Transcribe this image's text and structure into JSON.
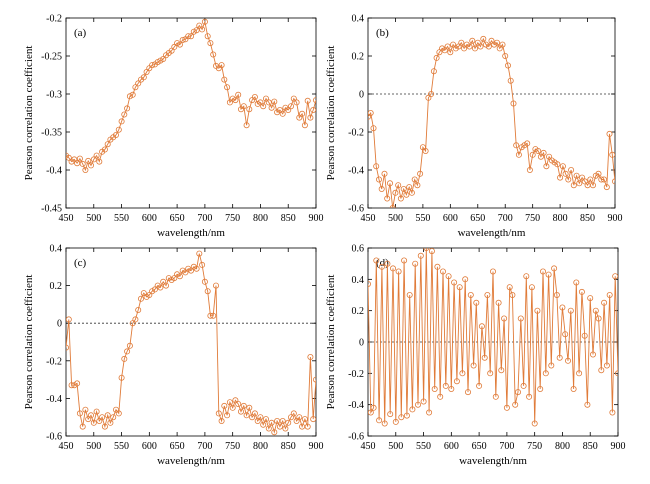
{
  "figure": {
    "line_color": "#e07b39",
    "zero_line_color": "#333333"
  },
  "chart_data": [
    {
      "type": "line",
      "panel_label": "(a)",
      "xlabel": "wavelength/nm",
      "ylabel": "Pearson correlation coefficient",
      "xlim": [
        450,
        900
      ],
      "ylim": [
        -0.45,
        -0.2
      ],
      "xticks": [
        450,
        500,
        550,
        600,
        650,
        700,
        750,
        800,
        850,
        900
      ],
      "yticks": [
        -0.45,
        -0.4,
        -0.35,
        -0.3,
        -0.25,
        -0.2
      ],
      "ytick_labels": [
        "-0.45",
        "-0.4",
        "-0.35",
        "-0.3",
        "-0.25",
        "-0.2"
      ],
      "zero_line": false,
      "x": [
        450,
        455,
        460,
        465,
        470,
        475,
        480,
        485,
        490,
        495,
        500,
        505,
        510,
        515,
        520,
        525,
        530,
        535,
        540,
        545,
        550,
        555,
        560,
        565,
        570,
        575,
        580,
        585,
        590,
        595,
        600,
        605,
        610,
        615,
        620,
        625,
        630,
        635,
        640,
        645,
        650,
        655,
        660,
        665,
        670,
        675,
        680,
        685,
        690,
        695,
        700,
        705,
        710,
        715,
        720,
        725,
        730,
        735,
        740,
        745,
        750,
        755,
        760,
        765,
        770,
        775,
        780,
        785,
        790,
        795,
        800,
        805,
        810,
        815,
        820,
        825,
        830,
        835,
        840,
        845,
        850,
        855,
        860,
        865,
        870,
        875,
        880,
        885,
        890,
        895,
        900
      ],
      "values": [
        -0.381,
        -0.384,
        -0.389,
        -0.386,
        -0.391,
        -0.385,
        -0.392,
        -0.4,
        -0.388,
        -0.394,
        -0.386,
        -0.381,
        -0.389,
        -0.376,
        -0.373,
        -0.366,
        -0.36,
        -0.357,
        -0.354,
        -0.347,
        -0.336,
        -0.327,
        -0.319,
        -0.303,
        -0.301,
        -0.291,
        -0.286,
        -0.281,
        -0.278,
        -0.271,
        -0.266,
        -0.262,
        -0.261,
        -0.258,
        -0.256,
        -0.254,
        -0.249,
        -0.246,
        -0.243,
        -0.238,
        -0.233,
        -0.235,
        -0.229,
        -0.228,
        -0.224,
        -0.224,
        -0.218,
        -0.216,
        -0.21,
        -0.215,
        -0.205,
        -0.224,
        -0.233,
        -0.248,
        -0.263,
        -0.266,
        -0.262,
        -0.281,
        -0.291,
        -0.311,
        -0.306,
        -0.308,
        -0.301,
        -0.32,
        -0.316,
        -0.341,
        -0.32,
        -0.308,
        -0.304,
        -0.313,
        -0.311,
        -0.316,
        -0.306,
        -0.311,
        -0.318,
        -0.31,
        -0.324,
        -0.321,
        -0.326,
        -0.318,
        -0.321,
        -0.316,
        -0.306,
        -0.311,
        -0.331,
        -0.326,
        -0.341,
        -0.309,
        -0.331,
        -0.321,
        -0.308
      ]
    },
    {
      "type": "line",
      "panel_label": "(b)",
      "xlabel": "wavelength/nm",
      "ylabel": "Pearson correlation coefficient",
      "xlim": [
        450,
        900
      ],
      "ylim": [
        -0.6,
        0.4
      ],
      "xticks": [
        450,
        500,
        550,
        600,
        650,
        700,
        750,
        800,
        850,
        900
      ],
      "yticks": [
        -0.6,
        -0.4,
        -0.2,
        0,
        0.2,
        0.4
      ],
      "ytick_labels": [
        "-0.6",
        "-0.4",
        "-0.2",
        "0",
        "0.2",
        "0.4"
      ],
      "zero_line": true,
      "x": [
        450,
        455,
        460,
        465,
        470,
        475,
        480,
        485,
        490,
        495,
        500,
        505,
        510,
        515,
        520,
        525,
        530,
        535,
        540,
        545,
        550,
        555,
        560,
        565,
        570,
        575,
        580,
        585,
        590,
        595,
        600,
        605,
        610,
        615,
        620,
        625,
        630,
        635,
        640,
        645,
        650,
        655,
        660,
        665,
        670,
        675,
        680,
        685,
        690,
        695,
        700,
        705,
        710,
        715,
        720,
        725,
        730,
        735,
        740,
        745,
        750,
        755,
        760,
        765,
        770,
        775,
        780,
        785,
        790,
        795,
        800,
        805,
        810,
        815,
        820,
        825,
        830,
        835,
        840,
        845,
        850,
        855,
        860,
        865,
        870,
        875,
        880,
        885,
        890,
        895,
        900
      ],
      "values": [
        -0.12,
        -0.1,
        -0.18,
        -0.38,
        -0.45,
        -0.5,
        -0.42,
        -0.55,
        -0.47,
        -0.6,
        -0.52,
        -0.48,
        -0.55,
        -0.5,
        -0.53,
        -0.49,
        -0.52,
        -0.45,
        -0.48,
        -0.42,
        -0.28,
        -0.3,
        -0.02,
        0.0,
        0.12,
        0.19,
        0.22,
        0.24,
        0.23,
        0.25,
        0.22,
        0.26,
        0.24,
        0.25,
        0.27,
        0.24,
        0.26,
        0.25,
        0.28,
        0.24,
        0.27,
        0.25,
        0.29,
        0.26,
        0.25,
        0.28,
        0.26,
        0.27,
        0.24,
        0.26,
        0.2,
        0.15,
        0.07,
        -0.05,
        -0.27,
        -0.32,
        -0.28,
        -0.27,
        -0.26,
        -0.4,
        -0.32,
        -0.29,
        -0.3,
        -0.33,
        -0.31,
        -0.38,
        -0.33,
        -0.35,
        -0.36,
        -0.37,
        -0.44,
        -0.38,
        -0.42,
        -0.45,
        -0.4,
        -0.48,
        -0.43,
        -0.47,
        -0.44,
        -0.46,
        -0.48,
        -0.45,
        -0.48,
        -0.43,
        -0.42,
        -0.45,
        -0.45,
        -0.49,
        -0.21,
        -0.32,
        -0.46
      ]
    },
    {
      "type": "line",
      "panel_label": "(c)",
      "xlabel": "wavelength/nm",
      "ylabel": "Pearson correlation coefficient",
      "xlim": [
        450,
        900
      ],
      "ylim": [
        -0.6,
        0.4
      ],
      "xticks": [
        450,
        500,
        550,
        600,
        650,
        700,
        750,
        800,
        850,
        900
      ],
      "yticks": [
        -0.6,
        -0.4,
        -0.2,
        0,
        0.2,
        0.4
      ],
      "ytick_labels": [
        "-0.6",
        "-0.4",
        "-0.2",
        "0",
        "0.2",
        "0.4"
      ],
      "zero_line": true,
      "x": [
        450,
        455,
        460,
        465,
        470,
        475,
        480,
        485,
        490,
        495,
        500,
        505,
        510,
        515,
        520,
        525,
        530,
        535,
        540,
        545,
        550,
        555,
        560,
        565,
        570,
        575,
        580,
        585,
        590,
        595,
        600,
        605,
        610,
        615,
        620,
        625,
        630,
        635,
        640,
        645,
        650,
        655,
        660,
        665,
        670,
        675,
        680,
        685,
        690,
        695,
        700,
        705,
        710,
        715,
        720,
        725,
        730,
        735,
        740,
        745,
        750,
        755,
        760,
        765,
        770,
        775,
        780,
        785,
        790,
        795,
        800,
        805,
        810,
        815,
        820,
        825,
        830,
        835,
        840,
        845,
        850,
        855,
        860,
        865,
        870,
        875,
        880,
        885,
        890,
        895,
        900
      ],
      "values": [
        -0.13,
        0.02,
        -0.33,
        -0.33,
        -0.32,
        -0.48,
        -0.55,
        -0.46,
        -0.51,
        -0.49,
        -0.53,
        -0.47,
        -0.52,
        -0.5,
        -0.55,
        -0.49,
        -0.53,
        -0.5,
        -0.46,
        -0.48,
        -0.29,
        -0.19,
        -0.15,
        -0.12,
        0.0,
        0.02,
        0.07,
        0.13,
        0.16,
        0.14,
        0.15,
        0.17,
        0.18,
        0.2,
        0.19,
        0.22,
        0.2,
        0.24,
        0.23,
        0.24,
        0.26,
        0.25,
        0.28,
        0.27,
        0.29,
        0.28,
        0.3,
        0.29,
        0.37,
        0.31,
        0.22,
        0.17,
        0.04,
        0.04,
        0.2,
        -0.48,
        -0.52,
        -0.44,
        -0.49,
        -0.42,
        -0.45,
        -0.41,
        -0.43,
        -0.47,
        -0.44,
        -0.49,
        -0.45,
        -0.5,
        -0.48,
        -0.52,
        -0.5,
        -0.54,
        -0.51,
        -0.56,
        -0.53,
        -0.58,
        -0.52,
        -0.55,
        -0.52,
        -0.56,
        -0.53,
        -0.5,
        -0.48,
        -0.52,
        -0.5,
        -0.55,
        -0.51,
        -0.55,
        -0.18,
        -0.51,
        -0.3
      ]
    },
    {
      "type": "line",
      "panel_label": "(d)",
      "xlabel": "wavelength/nm",
      "ylabel": "Pearson correlation coefficient",
      "xlim": [
        450,
        900
      ],
      "ylim": [
        -0.6,
        0.6
      ],
      "xticks": [
        450,
        500,
        550,
        600,
        650,
        700,
        750,
        800,
        850,
        900
      ],
      "yticks": [
        -0.6,
        -0.4,
        -0.2,
        0,
        0.2,
        0.4,
        0.6
      ],
      "ytick_labels": [
        "-0.6",
        "-0.4",
        "-0.2",
        "0",
        "0.2",
        "0.4",
        "0.6"
      ],
      "zero_line": true,
      "x": [
        450,
        455,
        460,
        465,
        470,
        475,
        480,
        485,
        490,
        495,
        500,
        505,
        510,
        515,
        520,
        525,
        530,
        535,
        540,
        545,
        550,
        555,
        560,
        565,
        570,
        575,
        580,
        585,
        590,
        595,
        600,
        605,
        610,
        615,
        620,
        625,
        630,
        635,
        640,
        645,
        650,
        655,
        660,
        665,
        670,
        675,
        680,
        685,
        690,
        695,
        700,
        705,
        710,
        715,
        720,
        725,
        730,
        735,
        740,
        745,
        750,
        755,
        760,
        765,
        770,
        775,
        780,
        785,
        790,
        795,
        800,
        805,
        810,
        815,
        820,
        825,
        830,
        835,
        840,
        845,
        850,
        855,
        860,
        865,
        870,
        875,
        880,
        885,
        890,
        895,
        900
      ],
      "values": [
        0.37,
        -0.45,
        -0.42,
        0.52,
        -0.5,
        0.48,
        -0.52,
        0.5,
        -0.46,
        0.47,
        -0.51,
        0.45,
        -0.48,
        0.52,
        -0.47,
        0.3,
        -0.43,
        0.5,
        -0.4,
        0.55,
        -0.38,
        0.6,
        -0.45,
        0.58,
        -0.3,
        0.48,
        -0.35,
        0.45,
        -0.28,
        0.42,
        -0.3,
        0.38,
        -0.25,
        0.35,
        -0.2,
        0.4,
        -0.32,
        0.3,
        -0.15,
        0.25,
        -0.28,
        0.1,
        -0.1,
        0.3,
        -0.2,
        0.45,
        -0.35,
        0.25,
        -0.18,
        0.15,
        -0.42,
        0.35,
        0.3,
        -0.4,
        -0.32,
        0.15,
        -0.28,
        0.42,
        -0.35,
        0.35,
        -0.52,
        0.2,
        -0.3,
        0.45,
        -0.2,
        0.43,
        -0.15,
        0.47,
        0.3,
        -0.1,
        0.22,
        0.05,
        -0.12,
        0.2,
        -0.3,
        0.38,
        -0.2,
        0.32,
        0.04,
        -0.4,
        0.28,
        -0.08,
        0.2,
        0.15,
        -0.18,
        0.25,
        -0.15,
        0.3,
        -0.45,
        0.42,
        -0.2
      ]
    }
  ]
}
